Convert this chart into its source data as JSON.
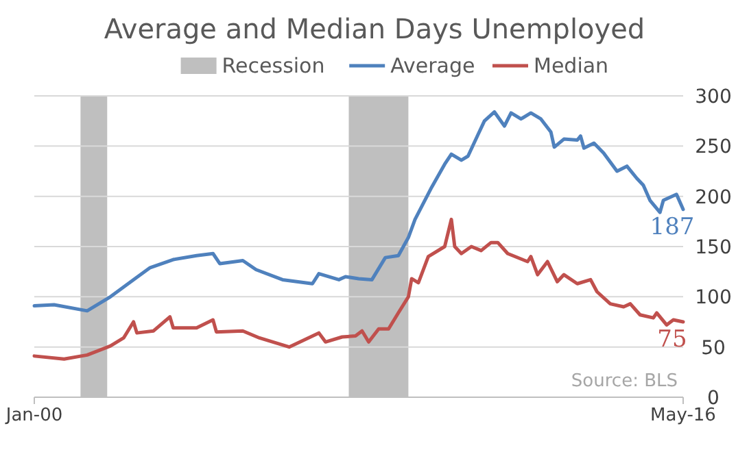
{
  "chart_data": {
    "type": "line",
    "title": "Average and Median Days Unemployed",
    "xlim": [
      "2000-01",
      "2016-05"
    ],
    "xticks": [
      {
        "value": "2000-01",
        "label": "Jan-00"
      },
      {
        "value": "2016-05",
        "label": "May-16"
      }
    ],
    "ylim": [
      0,
      300
    ],
    "yticks": [
      0,
      50,
      100,
      150,
      200,
      250,
      300
    ],
    "grid": "y",
    "legend": "top",
    "bands": [
      {
        "axis": "x",
        "from": "2001-03",
        "to": "2001-11",
        "label": "Recession",
        "color": "#bfbfbf"
      },
      {
        "axis": "x",
        "from": "2007-12",
        "to": "2009-06",
        "color": "#bfbfbf"
      }
    ],
    "series": [
      {
        "name": "Average",
        "color": "#4f81bd",
        "x": [
          "2000-01",
          "2000-07",
          "2001-05",
          "2001-12",
          "2002-07",
          "2002-12",
          "2003-07",
          "2004-02",
          "2004-07",
          "2004-09",
          "2005-04",
          "2005-08",
          "2006-04",
          "2007-01",
          "2007-03",
          "2007-09",
          "2007-11",
          "2008-03",
          "2008-07",
          "2008-11",
          "2009-03",
          "2009-06",
          "2009-08",
          "2010-01",
          "2010-05",
          "2010-07",
          "2010-10",
          "2010-12",
          "2011-03",
          "2011-05",
          "2011-08",
          "2011-11",
          "2012-01",
          "2012-04",
          "2012-07",
          "2012-10",
          "2013-01",
          "2013-02",
          "2013-05",
          "2013-09",
          "2013-10",
          "2013-11",
          "2014-02",
          "2014-05",
          "2014-09",
          "2014-12",
          "2015-03",
          "2015-05",
          "2015-07",
          "2015-10",
          "2015-11",
          "2016-03",
          "2016-05"
        ],
        "values": [
          91,
          92,
          86,
          100,
          117,
          129,
          137,
          141,
          143,
          133,
          136,
          127,
          117,
          113,
          123,
          117,
          120,
          118,
          117,
          139,
          141,
          159,
          177,
          209,
          232,
          242,
          236,
          240,
          261,
          275,
          284,
          270,
          283,
          277,
          283,
          277,
          264,
          249,
          257,
          256,
          260,
          248,
          253,
          243,
          225,
          230,
          218,
          211,
          196,
          184,
          196,
          202,
          187
        ],
        "value_labels": [
          null,
          null,
          null,
          null,
          null,
          null,
          null,
          null,
          null,
          null,
          null,
          null,
          null,
          null,
          null,
          null,
          null,
          null,
          null,
          null,
          null,
          null,
          null,
          null,
          null,
          null,
          null,
          null,
          null,
          null,
          null,
          null,
          null,
          null,
          null,
          null,
          null,
          null,
          null,
          null,
          null,
          null,
          null,
          null,
          null,
          null,
          null,
          null,
          null,
          null,
          null,
          null,
          "187"
        ]
      },
      {
        "name": "Median",
        "color": "#c0504d",
        "x": [
          "2000-01",
          "2000-10",
          "2001-05",
          "2001-12",
          "2002-04",
          "2002-07",
          "2002-08",
          "2003-01",
          "2003-06",
          "2003-07",
          "2004-02",
          "2004-07",
          "2004-08",
          "2005-04",
          "2005-09",
          "2006-06",
          "2007-03",
          "2007-05",
          "2007-10",
          "2008-02",
          "2008-04",
          "2008-06",
          "2008-09",
          "2008-12",
          "2009-03",
          "2009-06",
          "2009-07",
          "2009-09",
          "2009-12",
          "2010-05",
          "2010-07",
          "2010-08",
          "2010-10",
          "2011-01",
          "2011-04",
          "2011-07",
          "2011-09",
          "2011-12",
          "2012-06",
          "2012-07",
          "2012-09",
          "2012-12",
          "2013-03",
          "2013-05",
          "2013-09",
          "2014-01",
          "2014-03",
          "2014-07",
          "2014-11",
          "2015-01",
          "2015-04",
          "2015-08",
          "2015-09",
          "2015-12",
          "2016-02",
          "2016-05"
        ],
        "values": [
          41,
          38,
          42,
          51,
          59,
          75,
          64,
          66,
          80,
          69,
          69,
          77,
          65,
          66,
          59,
          50,
          64,
          55,
          60,
          61,
          66,
          55,
          68,
          68,
          84,
          100,
          118,
          114,
          140,
          150,
          177,
          150,
          143,
          150,
          146,
          154,
          154,
          143,
          135,
          140,
          122,
          135,
          115,
          122,
          113,
          117,
          105,
          93,
          90,
          93,
          82,
          79,
          84,
          72,
          77,
          75
        ],
        "value_labels": [
          null,
          null,
          null,
          null,
          null,
          null,
          null,
          null,
          null,
          null,
          null,
          null,
          null,
          null,
          null,
          null,
          null,
          null,
          null,
          null,
          null,
          null,
          null,
          null,
          null,
          null,
          null,
          null,
          null,
          null,
          null,
          null,
          null,
          null,
          null,
          null,
          null,
          null,
          null,
          null,
          null,
          null,
          null,
          null,
          null,
          null,
          null,
          null,
          null,
          null,
          null,
          null,
          null,
          null,
          null,
          "75"
        ]
      }
    ],
    "annotations": [
      "Source: BLS"
    ]
  }
}
